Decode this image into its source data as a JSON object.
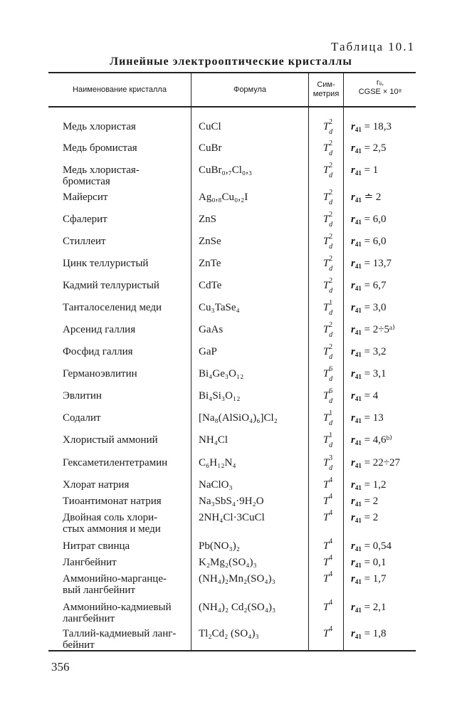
{
  "table_label": "Таблица 10.1",
  "table_title": "Линейные электрооптические кристаллы",
  "headers": {
    "name": "Наименование кристалла",
    "formula": "Формула",
    "symmetry": "Сим-\nметрия",
    "coefficient": "rᵢⱼ,\nCGSE × 10⁸"
  },
  "rows": [
    {
      "name": "Медь хлористая",
      "formula": "CuCl",
      "sym": {
        "base": "T",
        "sup": "2",
        "sub": "d"
      },
      "r": {
        "sub": "41",
        "rhs": "= 18,3"
      }
    },
    {
      "name": "Медь бромистая",
      "formula": "CuBr",
      "sym": {
        "base": "T",
        "sup": "2",
        "sub": "d"
      },
      "r": {
        "sub": "41",
        "rhs": "= 2,5"
      }
    },
    {
      "name": "Медь хлористая-\nбромистая",
      "formula": "CuBr₀,₇Cl₀,₃",
      "sym": {
        "base": "T",
        "sup": "2",
        "sub": "d"
      },
      "r": {
        "sub": "41",
        "rhs": "= 1"
      }
    },
    {
      "name": "Майерсит",
      "formula": "Ag₀,₈Cu₀,₂I",
      "sym": {
        "base": "T",
        "sup": "2",
        "sub": "d"
      },
      "r": {
        "sub": "41",
        "rhs": "≐ 2"
      }
    },
    {
      "name": "Сфалерит",
      "formula": "ZnS",
      "sym": {
        "base": "T",
        "sup": "2",
        "sub": "d"
      },
      "r": {
        "sub": "41",
        "rhs": "= 6,0"
      }
    },
    {
      "name": "Стиллеит",
      "formula": "ZnSe",
      "sym": {
        "base": "T",
        "sup": "2",
        "sub": "d"
      },
      "r": {
        "sub": "41",
        "rhs": "= 6,0"
      }
    },
    {
      "name": "Цинк теллуристый",
      "formula": "ZnTe",
      "sym": {
        "base": "T",
        "sup": "2",
        "sub": "d"
      },
      "r": {
        "sub": "41",
        "rhs": "= 13,7"
      }
    },
    {
      "name": "Кадмий теллуристый",
      "formula": "CdTe",
      "sym": {
        "base": "T",
        "sup": "2",
        "sub": "d"
      },
      "r": {
        "sub": "41",
        "rhs": "= 6,7"
      }
    },
    {
      "name": "Танталоселенид меди",
      "formula": "Cu₃TaSe₄",
      "sym": {
        "base": "T",
        "sup": "1",
        "sub": "d"
      },
      "r": {
        "sub": "41",
        "rhs": "= 3,0"
      }
    },
    {
      "name": "Арсенид галлия",
      "formula": "GaAs",
      "sym": {
        "base": "T",
        "sup": "2",
        "sub": "d"
      },
      "r": {
        "sub": "41",
        "rhs": "= 2÷5ᵃ⁾"
      }
    },
    {
      "name": "Фосфид галлия",
      "formula": "GaP",
      "sym": {
        "base": "T",
        "sup": "2",
        "sub": "d"
      },
      "r": {
        "sub": "41",
        "rhs": "= 3,2"
      }
    },
    {
      "name": "Германоэвлитин",
      "formula": "Bi₄Ge₃O₁₂",
      "sym": {
        "base": "T",
        "sup": "6",
        "sub": "d"
      },
      "r": {
        "sub": "41",
        "rhs": "= 3,1"
      }
    },
    {
      "name": "Эвлитин",
      "formula": "Bi₄Si₃O₁₂",
      "sym": {
        "base": "T",
        "sup": "6",
        "sub": "d"
      },
      "r": {
        "sub": "41",
        "rhs": "= 4"
      }
    },
    {
      "name": "Содалит",
      "formula": "[Na₈(AlSiO₄)₆]Cl₂",
      "sym": {
        "base": "T",
        "sup": "1",
        "sub": "d"
      },
      "r": {
        "sub": "41",
        "rhs": "= 13"
      }
    },
    {
      "name": "Хлористый аммоний",
      "formula": "NH₄Cl",
      "sym": {
        "base": "T",
        "sup": "1",
        "sub": "d"
      },
      "r": {
        "sub": "41",
        "rhs": "= 4,6ᵇ⁾"
      }
    },
    {
      "name": "Гексаметилентетрамин",
      "formula": "C₆H₁₂N₄",
      "sym": {
        "base": "T",
        "sup": "3",
        "sub": "d"
      },
      "r": {
        "sub": "41",
        "rhs": "= 22÷27"
      }
    },
    {
      "name": "Хлорат натрия",
      "formula": "NaClO₃",
      "sym": {
        "base": "T",
        "sup": "4",
        "sub": ""
      },
      "r": {
        "sub": "41",
        "rhs": "= 1,2"
      }
    },
    {
      "name": "Тиоантимонат натрия",
      "formula": "Na₃SbS₄·9H₂O",
      "sym": {
        "base": "T",
        "sup": "4",
        "sub": ""
      },
      "r": {
        "sub": "41",
        "rhs": "= 2"
      }
    },
    {
      "name": "Двойная соль хлори-\nстых аммония и меди",
      "formula": "2NH₄Cl·3CuCl",
      "sym": {
        "base": "T",
        "sup": "4",
        "sub": ""
      },
      "r": {
        "sub": "41",
        "rhs": "= 2"
      }
    },
    {
      "name": "Нитрат свинца",
      "formula": "Pb(NO₃)₂",
      "sym": {
        "base": "T",
        "sup": "4",
        "sub": ""
      },
      "r": {
        "sub": "41",
        "rhs": "= 0,54"
      }
    },
    {
      "name": "Лангбейнит",
      "formula": "K₂Mg₂(SO₄)₃",
      "sym": {
        "base": "T",
        "sup": "4",
        "sub": ""
      },
      "r": {
        "sub": "41",
        "rhs": "= 0,1"
      }
    },
    {
      "name": "Аммонийно-марганце-\nвый лангбейнит",
      "formula": "(NH₄)₂Mn₂(SO₄)₃",
      "sym": {
        "base": "T",
        "sup": "4",
        "sub": ""
      },
      "r": {
        "sub": "41",
        "rhs": "= 1,7"
      }
    },
    {
      "name": "Аммонийно-кадмиевый\nлангбейнит",
      "formula": "(NH₄)₂ Cd₂(SO₄)₃",
      "sym": {
        "base": "T",
        "sup": "4",
        "sub": ""
      },
      "r": {
        "sub": "41",
        "rhs": "= 2,1"
      }
    },
    {
      "name": "Таллий-кадмиевый ланг-\nбейнит",
      "formula": "Tl₂Cd₂ (SO₄)₃",
      "sym": {
        "base": "T",
        "sup": "4",
        "sub": ""
      },
      "r": {
        "sub": "41",
        "rhs": "= 1,8"
      }
    }
  ],
  "page_number": "356"
}
